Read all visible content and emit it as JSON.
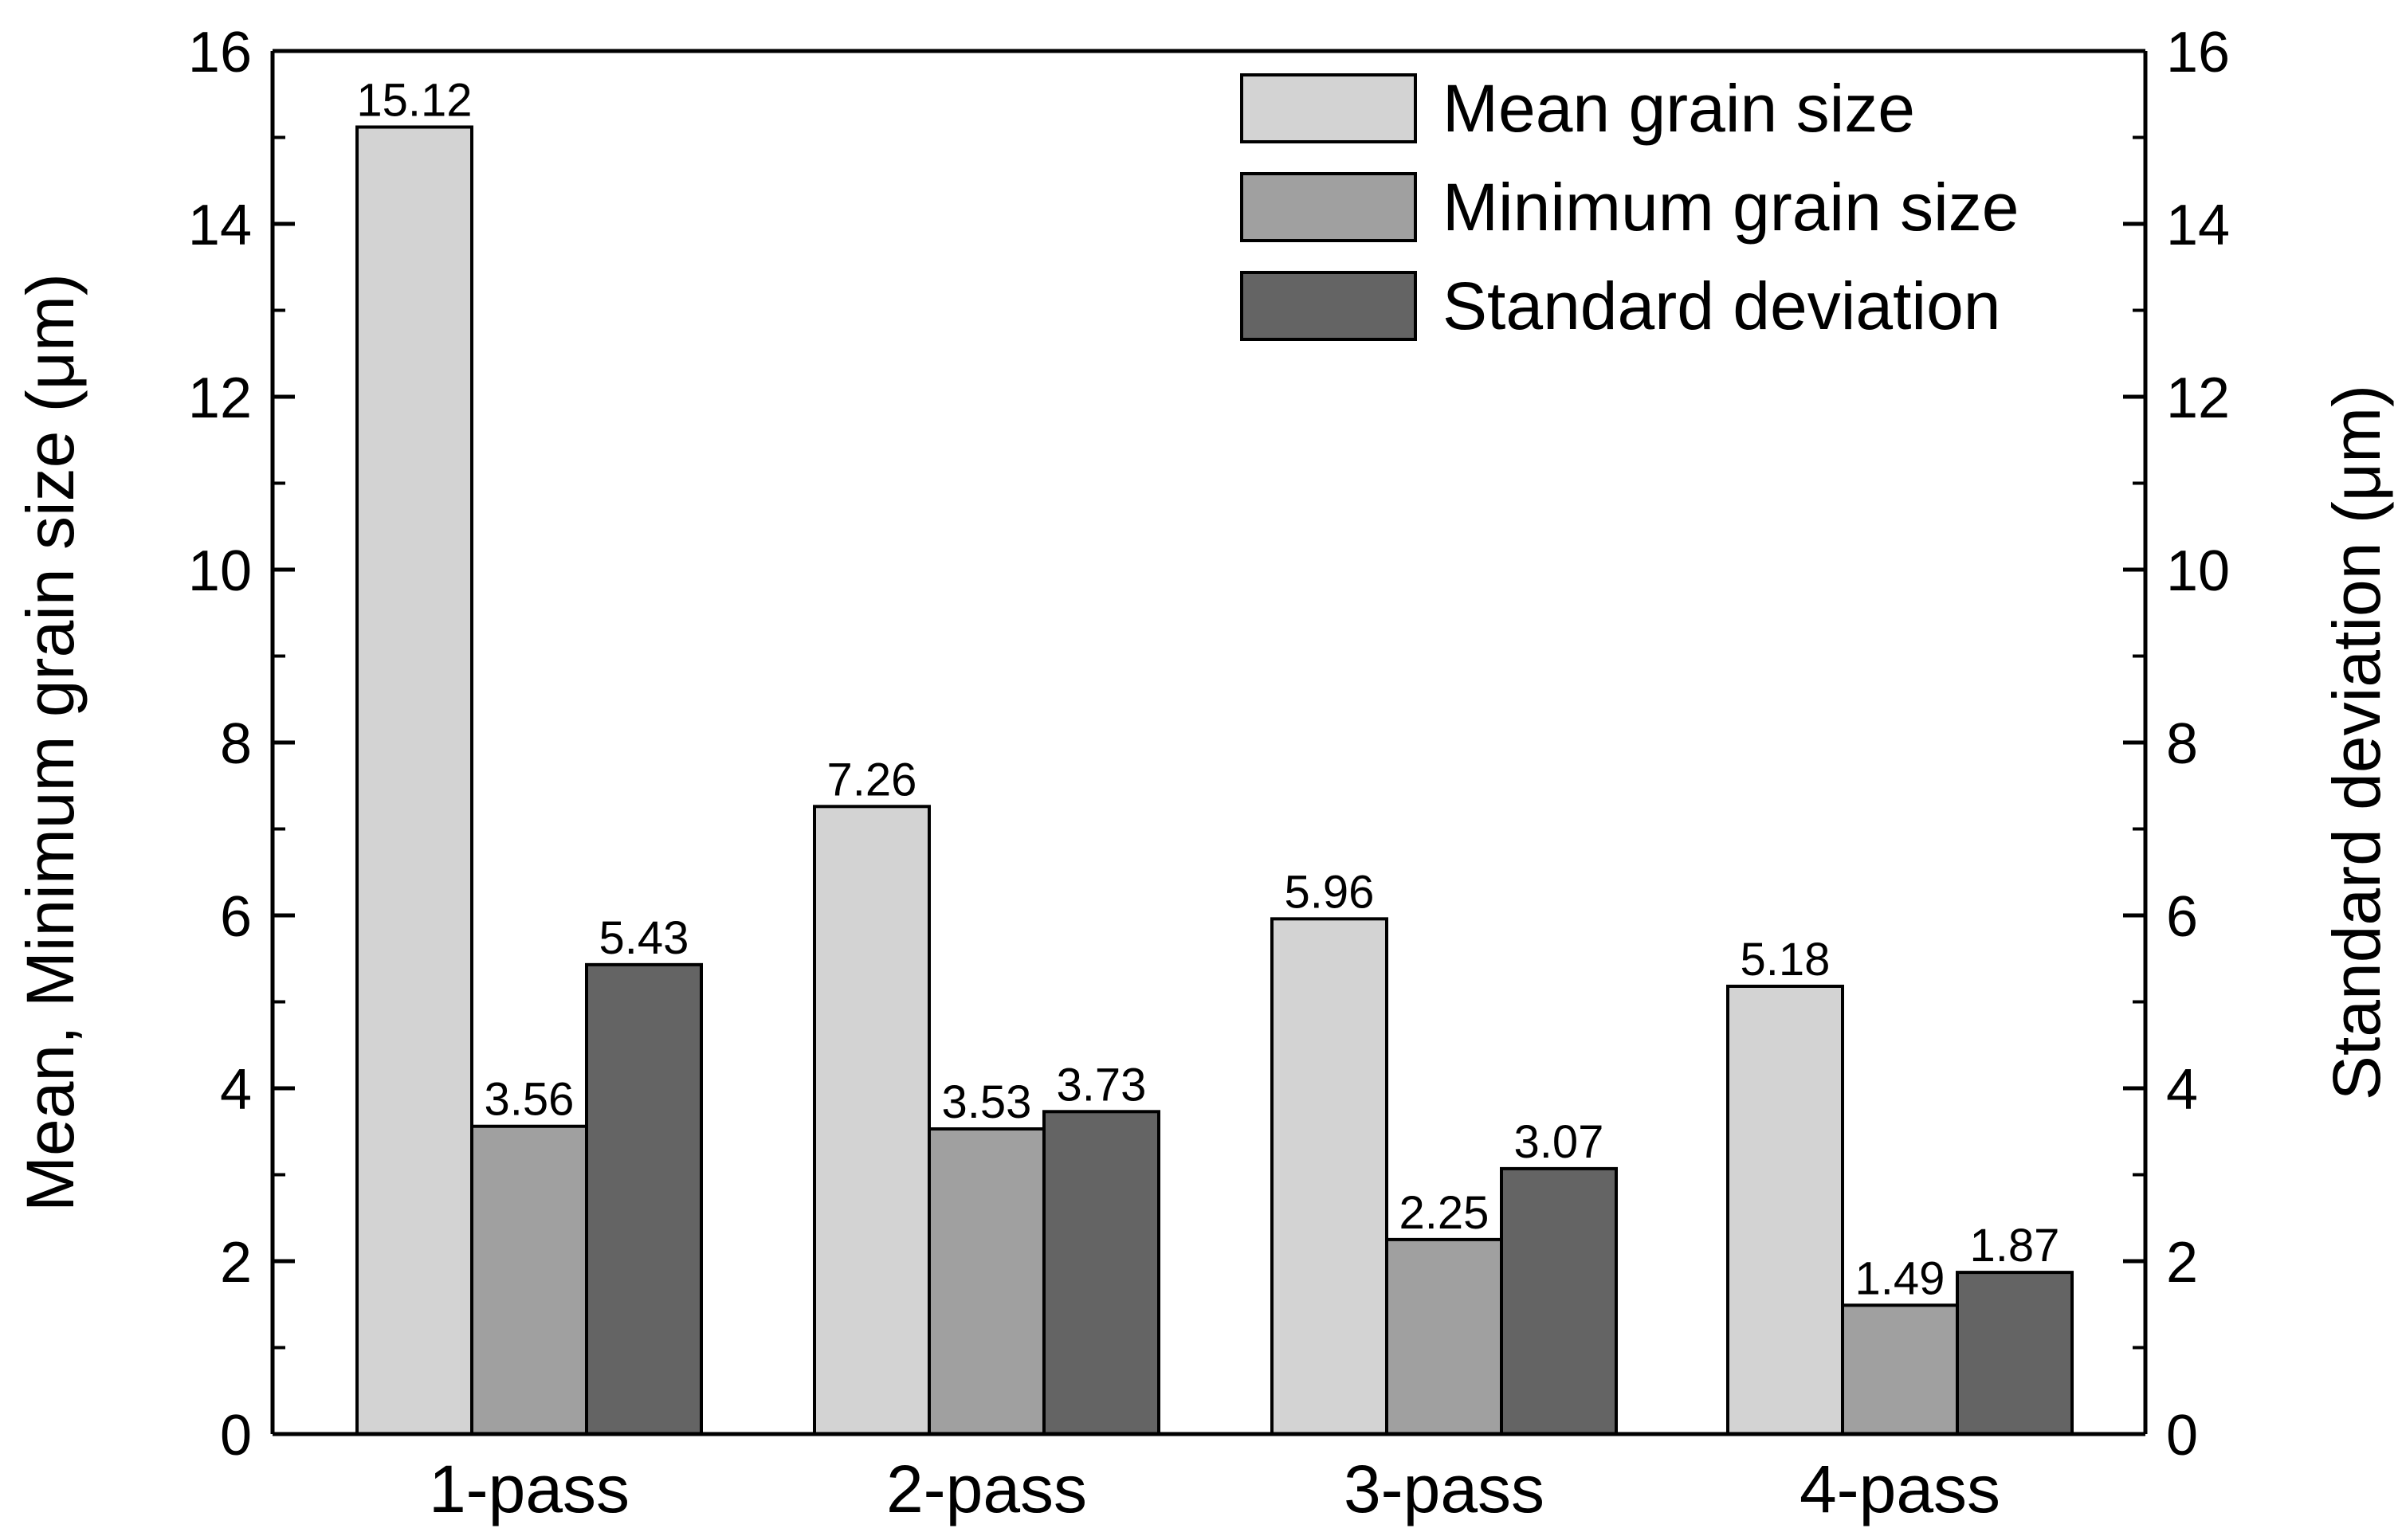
{
  "chart_data": {
    "type": "bar",
    "categories": [
      "1-pass",
      "2-pass",
      "3-pass",
      "4-pass"
    ],
    "series": [
      {
        "name": "Mean grain size",
        "values": [
          15.12,
          7.26,
          5.96,
          5.18
        ],
        "color": "#d3d3d3",
        "axis": "left"
      },
      {
        "name": "Minimum grain size",
        "values": [
          3.56,
          3.53,
          2.25,
          1.49
        ],
        "color": "#a0a0a0",
        "axis": "left"
      },
      {
        "name": "Standard deviation",
        "values": [
          5.43,
          3.73,
          3.07,
          1.87
        ],
        "color": "#646464",
        "axis": "right"
      }
    ],
    "data_labels": [
      [
        "15.12",
        "7.26",
        "5.96",
        "5.18"
      ],
      [
        "3.56",
        "3.53",
        "2.25",
        "1.49"
      ],
      [
        "5.43",
        "3.73",
        "3.07",
        "1.87"
      ]
    ],
    "ylabel": "Mean, Minimum grain size (μm)",
    "ylabel_right": "Standard deviation (μm)",
    "xlabel": "",
    "ylim": [
      0,
      16
    ],
    "ylim_right": [
      0,
      16
    ],
    "yticks": [
      0,
      2,
      4,
      6,
      8,
      10,
      12,
      14,
      16
    ],
    "ytick_labels": [
      "0",
      "2",
      "4",
      "6",
      "8",
      "10",
      "12",
      "14",
      "16"
    ],
    "legend_position": "top-right",
    "grid": false
  }
}
